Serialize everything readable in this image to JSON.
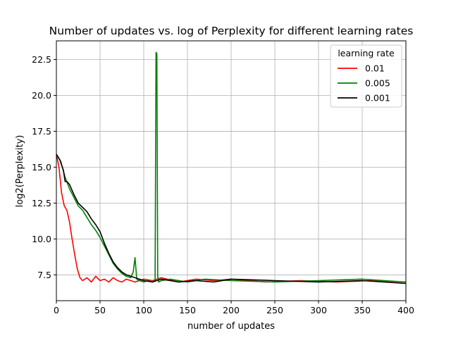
{
  "chart_data": {
    "type": "line",
    "title": "Number of updates vs. log of Perplexity for different learning rates",
    "xlabel": "number of updates",
    "ylabel": "log2(Perplexity)",
    "xlim": [
      0,
      400
    ],
    "ylim": [
      5.7,
      23.8
    ],
    "xticks": [
      0,
      50,
      100,
      150,
      200,
      250,
      300,
      350,
      400
    ],
    "yticks": [
      7.5,
      10.0,
      12.5,
      15.0,
      17.5,
      20.0,
      22.5
    ],
    "xtick_labels": [
      "0",
      "50",
      "100",
      "150",
      "200",
      "250",
      "300",
      "350",
      "400"
    ],
    "ytick_labels": [
      "7.5",
      "10.0",
      "12.5",
      "15.0",
      "17.5",
      "20.0",
      "22.5"
    ],
    "grid": true,
    "legend": {
      "title": "learning rate",
      "placement": "top-right"
    },
    "series": [
      {
        "name": "0.01",
        "color": "#ff0000",
        "x": [
          0,
          3,
          6,
          9,
          12,
          15,
          18,
          21,
          24,
          27,
          30,
          35,
          40,
          45,
          50,
          55,
          60,
          65,
          70,
          75,
          80,
          85,
          90,
          100,
          110,
          120,
          140,
          160,
          180,
          200,
          240,
          280,
          320,
          360,
          400
        ],
        "y": [
          15.9,
          15.0,
          13.2,
          12.3,
          12.0,
          11.2,
          10.0,
          8.9,
          7.9,
          7.3,
          7.1,
          7.3,
          7.0,
          7.4,
          7.1,
          7.2,
          7.0,
          7.3,
          7.1,
          7.0,
          7.2,
          7.1,
          7.0,
          7.2,
          7.1,
          7.3,
          7.0,
          7.2,
          7.1,
          7.2,
          7.0,
          7.1,
          7.0,
          7.1,
          6.9
        ]
      },
      {
        "name": "0.005",
        "color": "#008000",
        "x": [
          0,
          5,
          10,
          15,
          20,
          25,
          30,
          35,
          40,
          45,
          50,
          55,
          60,
          65,
          70,
          75,
          80,
          85,
          88,
          90,
          92,
          95,
          100,
          105,
          110,
          113,
          114,
          115,
          116,
          117,
          120,
          130,
          150,
          170,
          200,
          250,
          300,
          350,
          400
        ],
        "y": [
          15.9,
          15.4,
          14.3,
          13.5,
          12.9,
          12.3,
          12.0,
          11.5,
          11.0,
          10.6,
          10.1,
          9.5,
          8.9,
          8.3,
          7.9,
          7.6,
          7.4,
          7.3,
          7.7,
          8.7,
          7.2,
          7.1,
          7.0,
          7.1,
          7.0,
          7.1,
          23.0,
          22.9,
          7.4,
          7.0,
          7.1,
          7.2,
          7.0,
          7.2,
          7.1,
          7.0,
          7.1,
          7.2,
          7.0
        ]
      },
      {
        "name": "0.001",
        "color": "#000000",
        "x": [
          0,
          4,
          8,
          10,
          12,
          15,
          20,
          25,
          30,
          35,
          40,
          45,
          50,
          55,
          60,
          65,
          70,
          75,
          80,
          85,
          90,
          95,
          100,
          110,
          120,
          130,
          140,
          160,
          180,
          200,
          250,
          300,
          350,
          400
        ],
        "y": [
          15.9,
          15.5,
          14.8,
          14.0,
          14.0,
          13.8,
          13.1,
          12.5,
          12.2,
          11.9,
          11.4,
          11.0,
          10.5,
          9.7,
          9.0,
          8.4,
          8.0,
          7.7,
          7.5,
          7.4,
          7.3,
          7.2,
          7.1,
          7.0,
          7.2,
          7.1,
          7.0,
          7.1,
          7.0,
          7.2,
          7.1,
          7.0,
          7.1,
          6.9
        ]
      }
    ]
  }
}
